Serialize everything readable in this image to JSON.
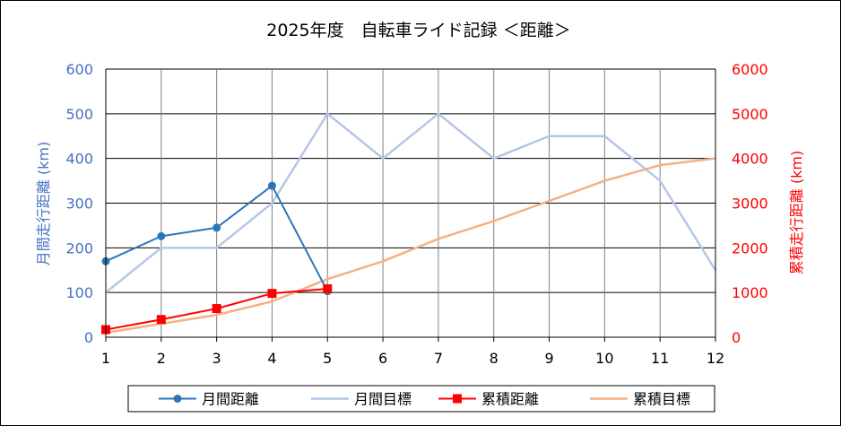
{
  "chart_data": {
    "type": "line",
    "title": "2025年度　自転車ライド記録 ＜距離＞",
    "x": [
      1,
      2,
      3,
      4,
      5,
      6,
      7,
      8,
      9,
      10,
      11,
      12
    ],
    "x_tick_labels": [
      "1",
      "2",
      "3",
      "4",
      "5",
      "6",
      "7",
      "8",
      "9",
      "10",
      "11",
      "12"
    ],
    "y_left": {
      "label": "月間走行距離 (km)",
      "range": [
        0,
        600
      ],
      "ticks": [
        "0",
        "100",
        "200",
        "300",
        "400",
        "500",
        "600"
      ],
      "color": "#4472c4"
    },
    "y_right": {
      "label": "累積走行距離 (km)",
      "range": [
        0,
        6000
      ],
      "ticks": [
        "0",
        "1000",
        "2000",
        "3000",
        "4000",
        "5000",
        "6000"
      ],
      "color": "#ff0000"
    },
    "grid": true,
    "legend_position": "bottom",
    "series": [
      {
        "name": "月間距離",
        "axis": "left",
        "color": "#2e75b6",
        "marker": "circle",
        "values": [
          170,
          226,
          245,
          339,
          103,
          null,
          null,
          null,
          null,
          null,
          null,
          null
        ]
      },
      {
        "name": "月間目標",
        "axis": "left",
        "color": "#b4c7e7",
        "marker": "none",
        "values": [
          100,
          200,
          200,
          300,
          500,
          400,
          500,
          400,
          450,
          450,
          350,
          150
        ]
      },
      {
        "name": "累積距離",
        "axis": "right",
        "color": "#ff0000",
        "marker": "square",
        "values": [
          170,
          396,
          641,
          980,
          1083,
          null,
          null,
          null,
          null,
          null,
          null,
          null
        ]
      },
      {
        "name": "累積目標",
        "axis": "right",
        "color": "#f4b183",
        "marker": "none",
        "values": [
          100,
          300,
          500,
          800,
          1300,
          1700,
          2200,
          2600,
          3050,
          3500,
          3850,
          4000
        ]
      }
    ]
  }
}
